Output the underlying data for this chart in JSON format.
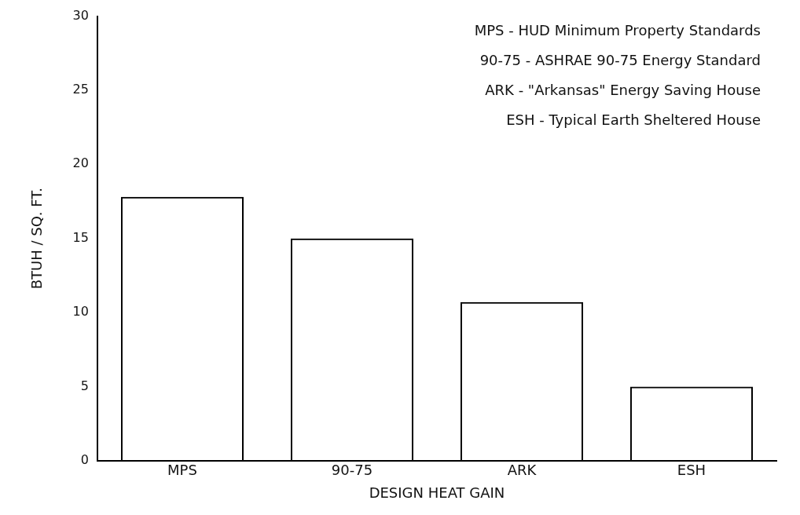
{
  "chart_data": {
    "type": "bar",
    "xlabel": "DESIGN HEAT GAIN",
    "ylabel": "BTUH / SQ. FT.",
    "categories": [
      "MPS",
      "90-75",
      "ARK",
      "ESH"
    ],
    "values": [
      17.8,
      15.0,
      10.7,
      5.0
    ],
    "color": "#000000",
    "ylim": [
      0,
      30
    ],
    "yticks": [
      0,
      5,
      10,
      15,
      20,
      25,
      30
    ],
    "grid": false,
    "legend": false,
    "annotations": [
      "MPS - HUD Minimum Property Standards",
      "90-75 - ASHRAE 90-75 Energy Standard",
      "ARK - \"Arkansas\" Energy Saving House",
      "ESH - Typical Earth Sheltered House"
    ]
  }
}
